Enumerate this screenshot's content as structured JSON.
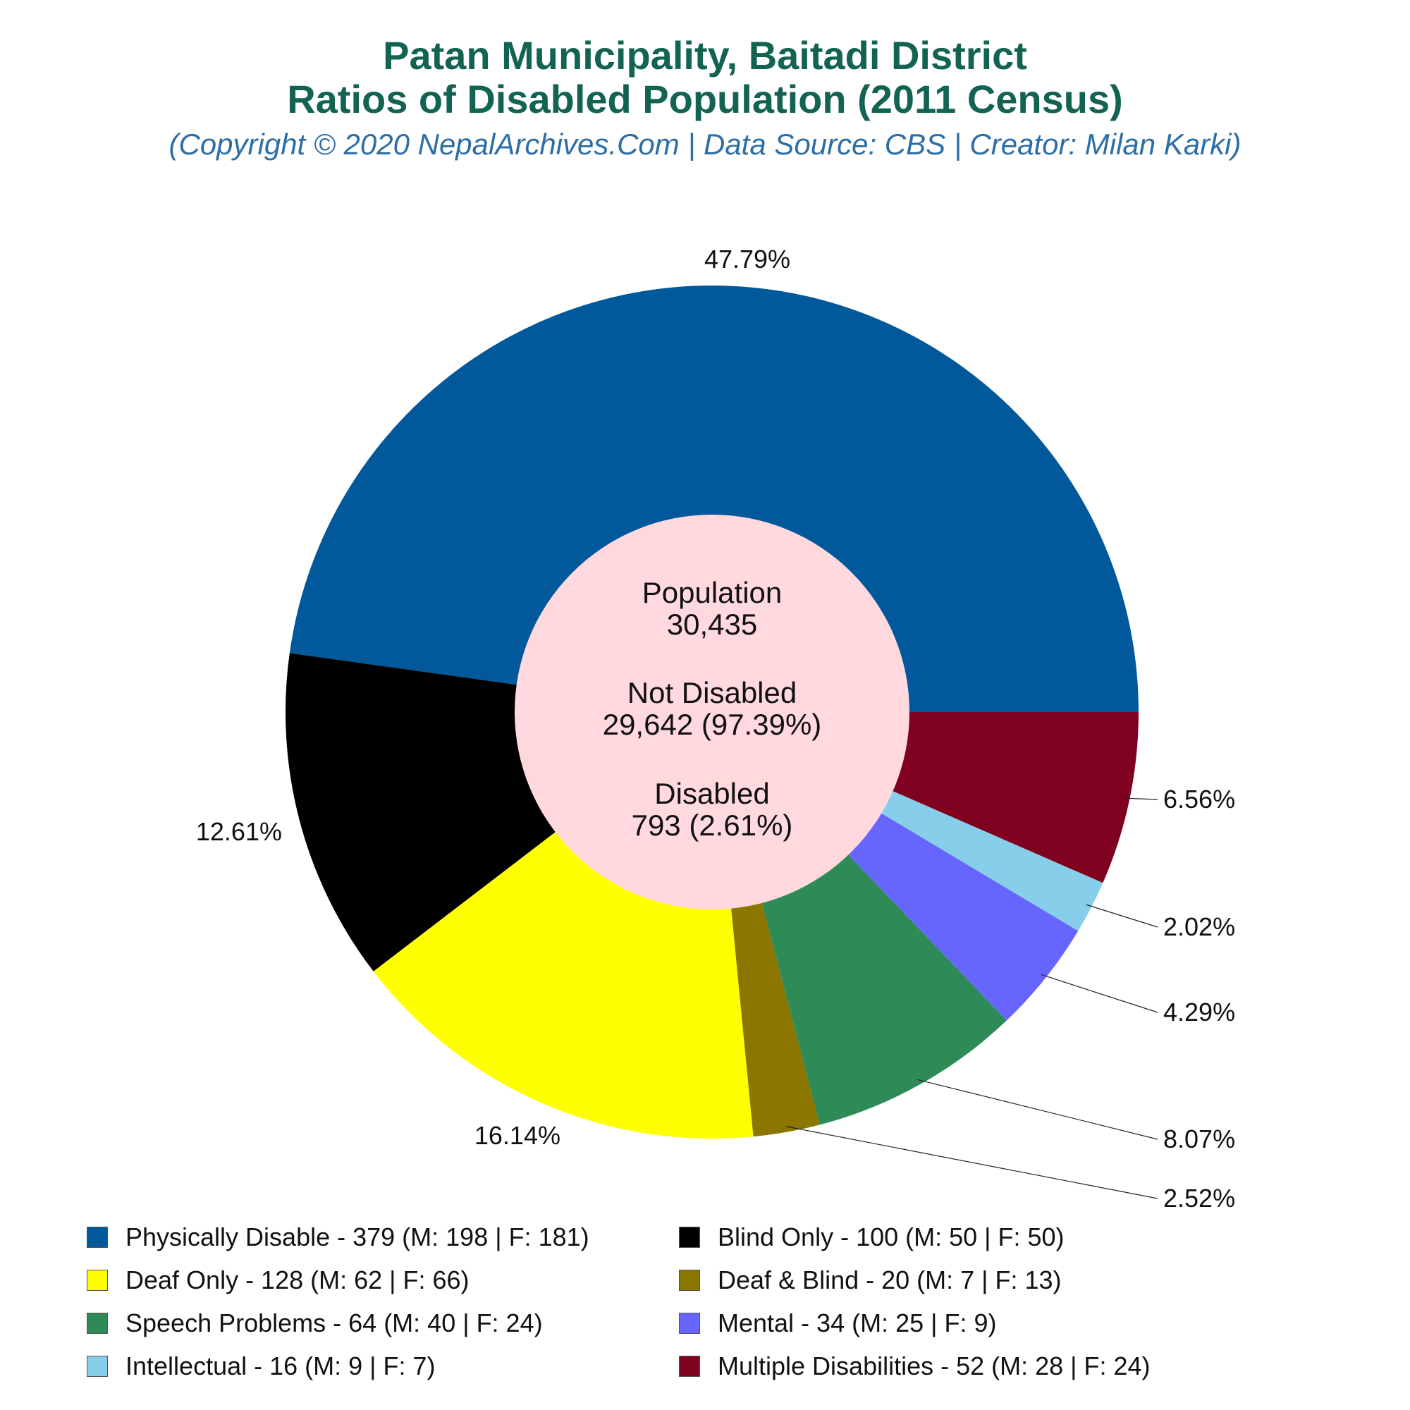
{
  "title_line1": "Patan Municipality, Baitadi District",
  "title_line2": "Ratios of Disabled Population (2011 Census)",
  "subtitle": "(Copyright © 2020 NepalArchives.Com | Data Source: CBS | Creator: Milan Karki)",
  "center": {
    "population_label": "Population",
    "population_value": "30,435",
    "not_disabled_label": "Not Disabled",
    "not_disabled_value": "29,642 (97.39%)",
    "disabled_label": "Disabled",
    "disabled_value": "793 (2.61%)"
  },
  "chart_data": {
    "type": "pie",
    "style": "donut",
    "title": "Patan Municipality, Baitadi District Ratios of Disabled Population (2011 Census)",
    "legend_position": "bottom",
    "slices": [
      {
        "label": "Physically Disable - 379 (M: 198 | F: 181)",
        "value": 379,
        "percent_label": "47.79%",
        "color": "#01589b"
      },
      {
        "label": "Blind Only - 100 (M: 50 | F: 50)",
        "value": 100,
        "percent_label": "12.61%",
        "color": "#000000"
      },
      {
        "label": "Deaf Only - 128 (M: 62 | F: 66)",
        "value": 128,
        "percent_label": "16.14%",
        "color": "#ffff00"
      },
      {
        "label": "Deaf & Blind - 20 (M: 7 | F: 13)",
        "value": 20,
        "percent_label": "2.52%",
        "color": "#8b7600"
      },
      {
        "label": "Speech Problems - 64 (M: 40 | F: 24)",
        "value": 64,
        "percent_label": "8.07%",
        "color": "#2e8b57"
      },
      {
        "label": "Mental - 34 (M: 25 | F: 9)",
        "value": 34,
        "percent_label": "4.29%",
        "color": "#6666ff"
      },
      {
        "label": "Intellectual - 16 (M: 9 | F: 7)",
        "value": 16,
        "percent_label": "2.02%",
        "color": "#87ceeb"
      },
      {
        "label": "Multiple Disabilities - 52 (M: 28 | F: 24)",
        "value": 52,
        "percent_label": "6.56%",
        "color": "#800020"
      }
    ]
  },
  "colors": {
    "title": "#136352",
    "subtitle": "#2e6ea6",
    "center_fill": "#ffd9de"
  }
}
